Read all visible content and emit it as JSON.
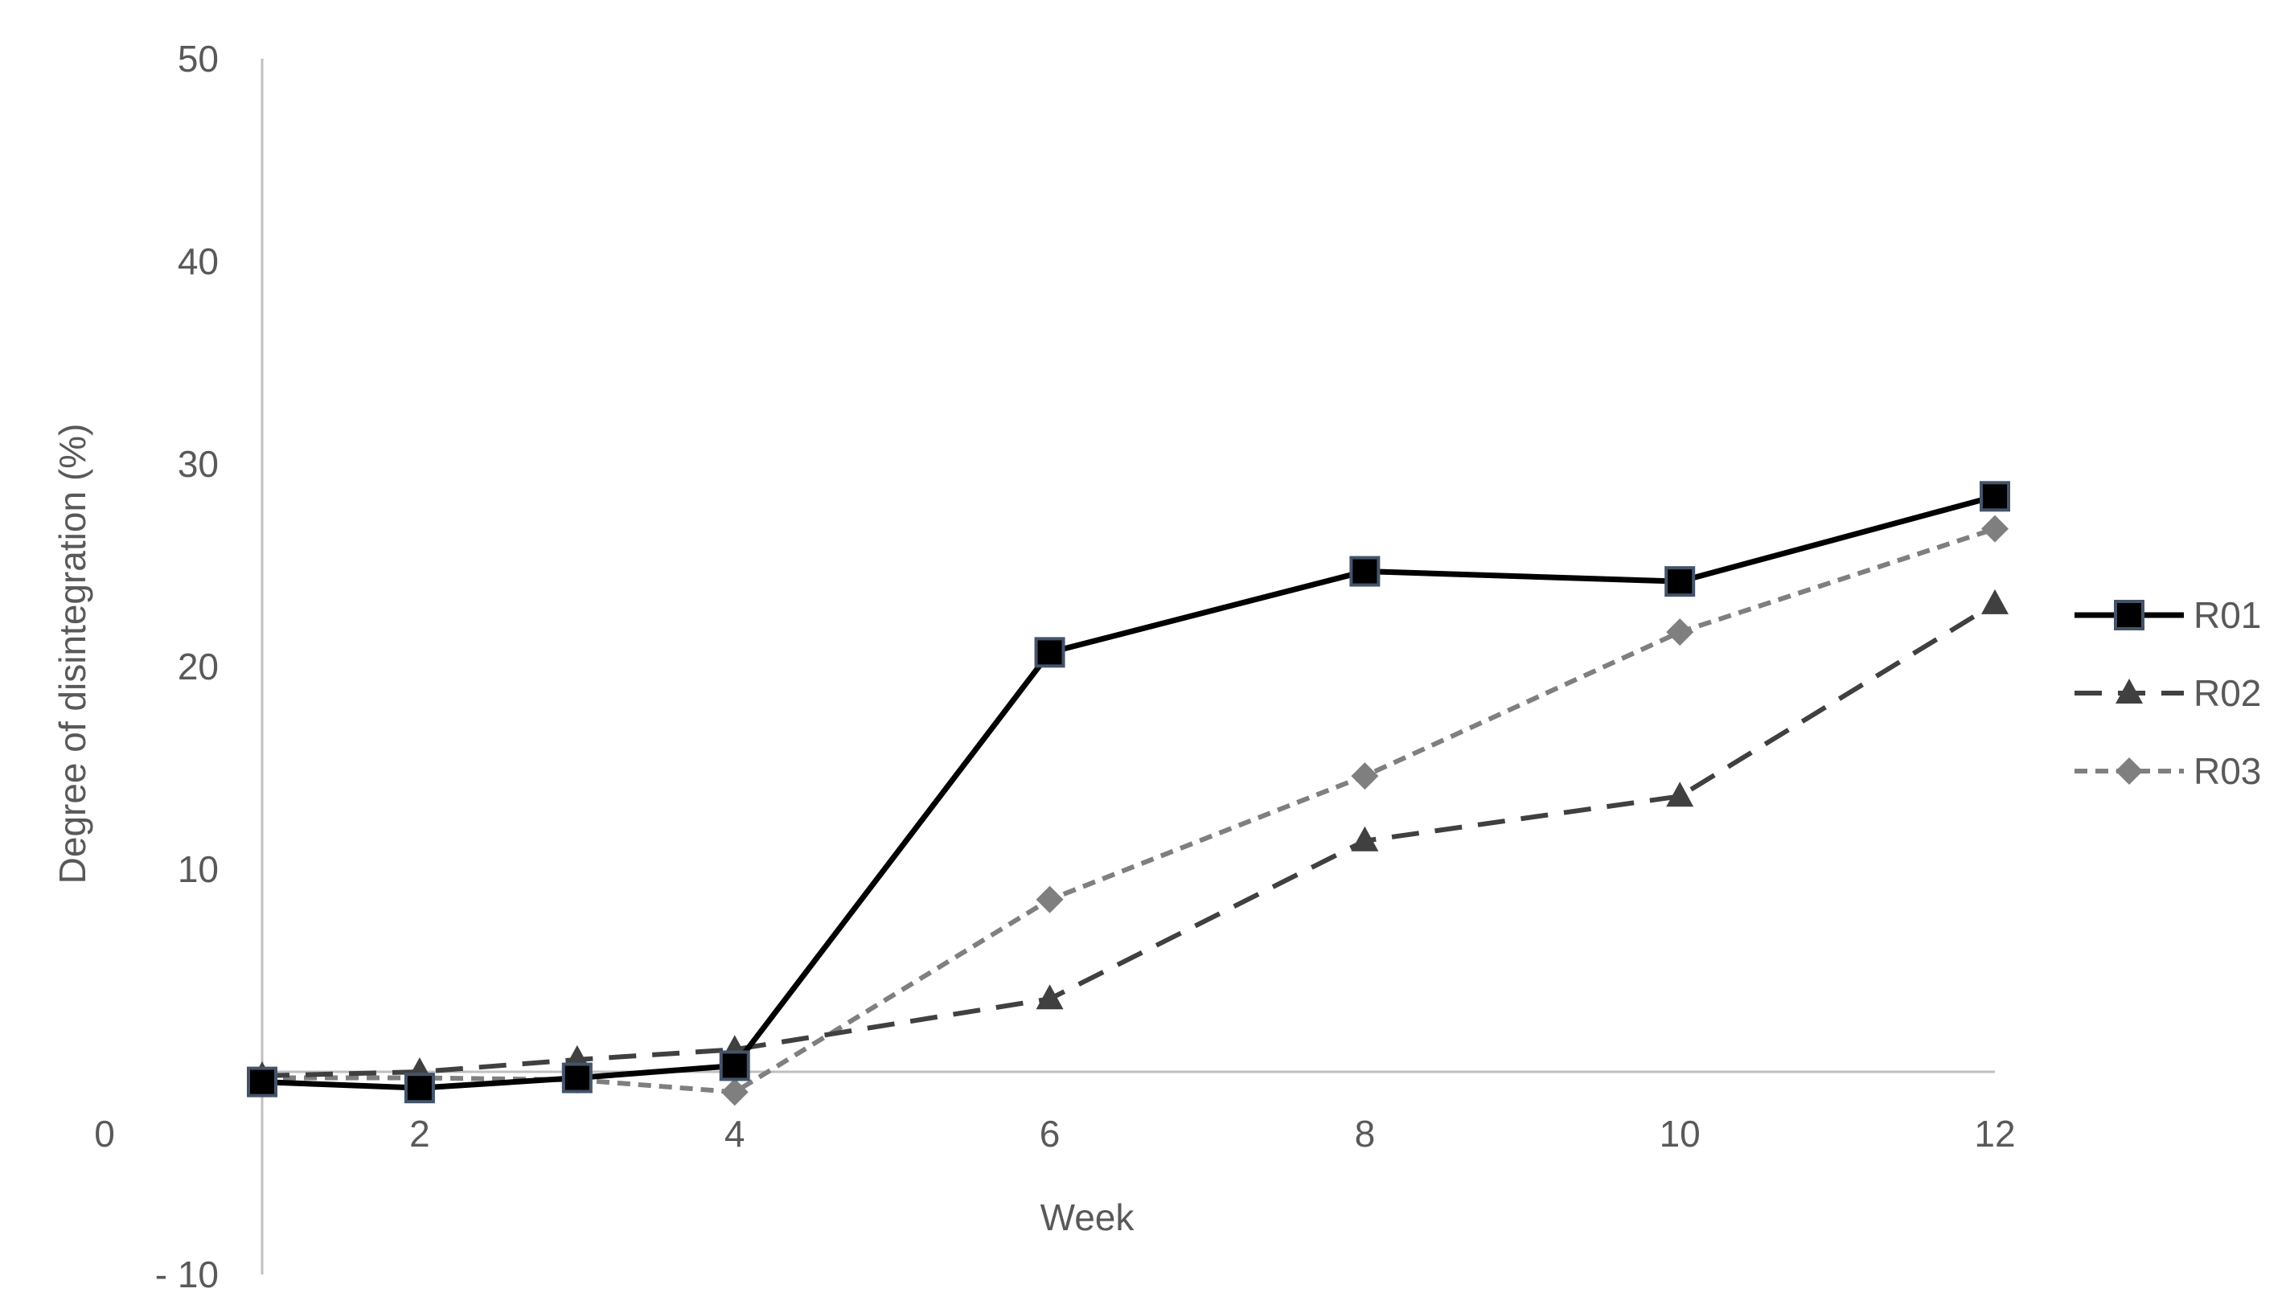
{
  "chart_data": {
    "type": "line",
    "title": "",
    "xlabel": "Week",
    "ylabel": "Degree of disintegration (%)",
    "xlim": [
      1,
      12
    ],
    "ylim": [
      -10,
      50
    ],
    "x_ticks": [
      {
        "value": 1,
        "label": "0"
      },
      {
        "value": 2,
        "label": "2"
      },
      {
        "value": 4,
        "label": "4"
      },
      {
        "value": 6,
        "label": "6"
      },
      {
        "value": 8,
        "label": "8"
      },
      {
        "value": 10,
        "label": "10"
      },
      {
        "value": 12,
        "label": "12"
      }
    ],
    "y_ticks": [
      {
        "value": -10,
        "label": "- 10"
      },
      {
        "value": 10,
        "label": "10"
      },
      {
        "value": 20,
        "label": "20"
      },
      {
        "value": 30,
        "label": "30"
      },
      {
        "value": 40,
        "label": "40"
      },
      {
        "value": 50,
        "label": "50"
      }
    ],
    "legend_position": "right",
    "grid": false,
    "series": [
      {
        "name": "R01",
        "color": "#000000",
        "marker": "square",
        "line": "solid",
        "x": [
          1,
          2,
          3,
          4,
          6,
          8,
          10,
          12
        ],
        "y": [
          -0.5,
          -0.8,
          -0.3,
          0.3,
          20.7,
          24.7,
          24.2,
          28.4
        ]
      },
      {
        "name": "R02",
        "color": "#404040",
        "marker": "triangle",
        "line": "dashed",
        "x": [
          1,
          2,
          3,
          4,
          6,
          8,
          10,
          12
        ],
        "y": [
          -0.2,
          0,
          0.6,
          1.1,
          3.6,
          11.4,
          13.6,
          23.1
        ]
      },
      {
        "name": "R03",
        "color": "#7f7f7f",
        "marker": "diamond",
        "line": "dotted",
        "x": [
          1,
          2,
          3,
          4,
          6,
          8,
          10,
          12
        ],
        "y": [
          -0.3,
          -0.3,
          -0.4,
          -1.0,
          8.5,
          14.6,
          21.7,
          26.8
        ]
      }
    ]
  }
}
